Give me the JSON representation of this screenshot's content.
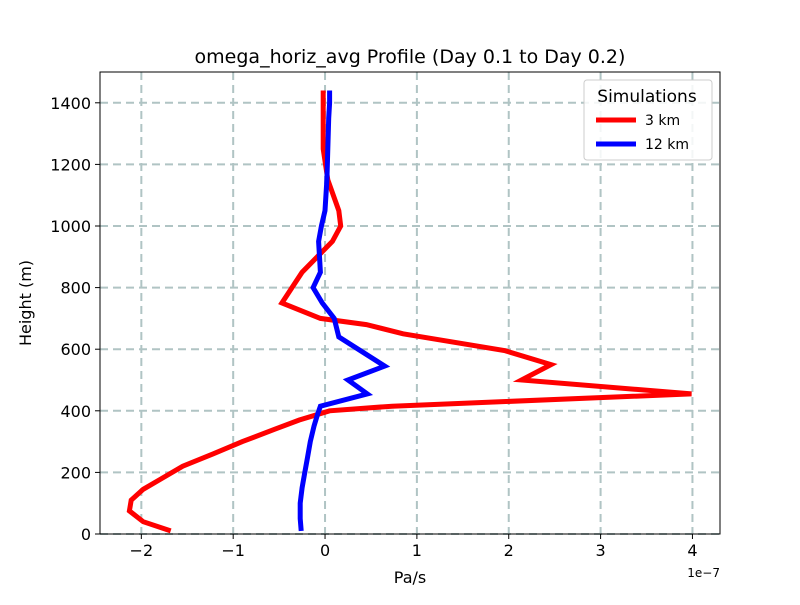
{
  "chart_data": {
    "type": "line",
    "title": "omega_horiz_avg Profile (Day 0.1 to Day 0.2)",
    "xlabel": "Pa/s",
    "ylabel": "Height (m)",
    "x_offset_label": "1e−7",
    "xlim": [
      -2.45,
      4.3
    ],
    "ylim": [
      0,
      1500
    ],
    "grid": true,
    "x_ticks": [
      -2,
      -1,
      0,
      1,
      2,
      3,
      4
    ],
    "x_tick_labels": [
      "−2",
      "−1",
      "0",
      "1",
      "2",
      "3",
      "4"
    ],
    "y_ticks": [
      0,
      200,
      400,
      600,
      800,
      1000,
      1200,
      1400
    ],
    "y_tick_labels": [
      "0",
      "200",
      "400",
      "600",
      "800",
      "1000",
      "1200",
      "1400"
    ],
    "legend": {
      "title": "Simulations",
      "placement": "upper right"
    },
    "series": [
      {
        "name": "3 km",
        "color": "#ff0000",
        "x": [
          -1.68,
          -1.98,
          -2.13,
          -2.11,
          -1.98,
          -1.78,
          -1.55,
          -1.22,
          -0.9,
          -0.55,
          -0.28,
          0.05,
          0.73,
          3.99,
          2.14,
          2.46,
          1.96,
          0.85,
          0.45,
          -0.05,
          -0.47,
          -0.25,
          0.08,
          0.17,
          0.15,
          0.03,
          -0.02,
          -0.02,
          -0.02
        ],
        "y": [
          10,
          40,
          75,
          110,
          145,
          180,
          220,
          260,
          300,
          340,
          370,
          400,
          415,
          455,
          500,
          550,
          595,
          650,
          680,
          700,
          750,
          850,
          950,
          1000,
          1050,
          1150,
          1250,
          1350,
          1440
        ]
      },
      {
        "name": "12 km",
        "color": "#0000ff",
        "x": [
          -0.26,
          -0.27,
          -0.27,
          -0.25,
          -0.22,
          -0.19,
          -0.16,
          -0.12,
          -0.08,
          -0.05,
          0.46,
          0.25,
          0.65,
          0.15,
          0.1,
          -0.03,
          -0.13,
          -0.05,
          -0.07,
          -0.04,
          0.0,
          0.02,
          0.03,
          0.04,
          0.05,
          0.05
        ],
        "y": [
          10,
          50,
          100,
          150,
          200,
          250,
          300,
          350,
          390,
          415,
          455,
          500,
          545,
          640,
          700,
          750,
          800,
          850,
          950,
          1000,
          1050,
          1150,
          1250,
          1350,
          1400,
          1440
        ]
      }
    ]
  }
}
